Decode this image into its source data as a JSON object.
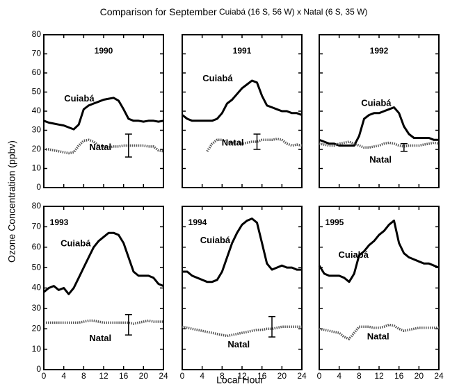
{
  "title": "Comparison for September",
  "subtitle": "Cuiabá (16 S, 56 W) x Natal (6 S, 35 W)",
  "xlabel": "Local Hour",
  "ylabel": "Ozone Concentration (ppbv)",
  "chart_data": [
    {
      "type": "line",
      "title": "1990",
      "xlim": [
        0,
        24
      ],
      "xticks": [
        0,
        4,
        8,
        12,
        16,
        20,
        24
      ],
      "ylim": [
        0,
        80
      ],
      "yticks": [
        0,
        10,
        20,
        30,
        40,
        50,
        60,
        70,
        80
      ],
      "x": [
        0,
        1,
        2,
        3,
        4,
        5,
        6,
        7,
        8,
        9,
        10,
        11,
        12,
        13,
        14,
        15,
        16,
        17,
        18,
        19,
        20,
        21,
        22,
        23,
        24
      ],
      "series": [
        {
          "name": "Cuiabá",
          "color": "#000000",
          "values": [
            35,
            34,
            33.5,
            33,
            32.5,
            31.5,
            30.5,
            33,
            41,
            43,
            44,
            45,
            46,
            46.5,
            47,
            45.5,
            41,
            36,
            35,
            35,
            34.5,
            35,
            35,
            34.5,
            35
          ]
        },
        {
          "name": "Natal",
          "color": "#555555",
          "values": [
            20,
            20,
            19.5,
            19,
            18.5,
            18,
            18.5,
            22,
            24.5,
            25,
            24,
            22,
            21.5,
            21,
            21.5,
            21.5,
            22,
            22,
            22,
            22,
            22,
            21.5,
            21.5,
            19.5,
            19
          ]
        }
      ],
      "error_bar": {
        "x": 17,
        "value": 22,
        "error": 6
      }
    },
    {
      "type": "line",
      "title": "1991",
      "xlim": [
        0,
        24
      ],
      "xticks": [
        0,
        4,
        8,
        12,
        16,
        20,
        24
      ],
      "ylim": [
        0,
        80
      ],
      "yticks": [
        0,
        10,
        20,
        30,
        40,
        50,
        60,
        70,
        80
      ],
      "x": [
        0,
        1,
        2,
        3,
        4,
        5,
        6,
        7,
        8,
        9,
        10,
        11,
        12,
        13,
        14,
        15,
        16,
        17,
        18,
        19,
        20,
        21,
        22,
        23,
        24
      ],
      "series": [
        {
          "name": "Cuiabá",
          "color": "#000000",
          "values": [
            38,
            36,
            35,
            35,
            35,
            35,
            35,
            36,
            39,
            44,
            46,
            49,
            52,
            54,
            56,
            55,
            48,
            43,
            42,
            41,
            40,
            40,
            39,
            39,
            38
          ]
        },
        {
          "name": "Natal",
          "color": "#555555",
          "values": [
            null,
            null,
            null,
            null,
            null,
            19,
            23,
            25,
            25,
            24,
            23.5,
            23,
            23,
            23.5,
            24,
            24,
            25,
            25,
            25,
            25.5,
            25,
            23,
            22,
            22.5,
            22
          ]
        }
      ],
      "error_bar": {
        "x": 15,
        "value": 24,
        "error": 4
      }
    },
    {
      "type": "line",
      "title": "1992",
      "xlim": [
        0,
        24
      ],
      "xticks": [
        0,
        4,
        8,
        12,
        16,
        20,
        24
      ],
      "ylim": [
        0,
        80
      ],
      "yticks": [
        0,
        10,
        20,
        30,
        40,
        50,
        60,
        70,
        80
      ],
      "x": [
        0,
        1,
        2,
        3,
        4,
        5,
        6,
        7,
        8,
        9,
        10,
        11,
        12,
        13,
        14,
        15,
        16,
        17,
        18,
        19,
        20,
        21,
        22,
        23,
        24
      ],
      "series": [
        {
          "name": "Cuiabá",
          "color": "#000000",
          "values": [
            25,
            24,
            23,
            23,
            22,
            22,
            22,
            22,
            27,
            36,
            38,
            39,
            39,
            40,
            41,
            42,
            39,
            32,
            28,
            26,
            26,
            26,
            26,
            25,
            25
          ]
        },
        {
          "name": "Natal",
          "color": "#555555",
          "values": [
            23,
            22.5,
            22,
            22,
            23,
            23.5,
            24,
            23,
            22,
            21,
            21,
            21.5,
            22,
            23,
            23.5,
            23,
            22,
            21.5,
            22,
            22,
            22,
            22.5,
            23,
            23.5,
            23
          ]
        }
      ],
      "error_bar": {
        "x": 17,
        "value": 21,
        "error": 2
      }
    },
    {
      "type": "line",
      "title": "1993",
      "xlim": [
        0,
        24
      ],
      "xticks": [
        0,
        4,
        8,
        12,
        16,
        20,
        24
      ],
      "ylim": [
        0,
        80
      ],
      "yticks": [
        0,
        10,
        20,
        30,
        40,
        50,
        60,
        70,
        80
      ],
      "x": [
        0,
        1,
        2,
        3,
        4,
        5,
        6,
        7,
        8,
        9,
        10,
        11,
        12,
        13,
        14,
        15,
        16,
        17,
        18,
        19,
        20,
        21,
        22,
        23,
        24
      ],
      "series": [
        {
          "name": "Cuiabá",
          "color": "#000000",
          "values": [
            38,
            40,
            41,
            39,
            40,
            37,
            40,
            45,
            50,
            55,
            60,
            63,
            65,
            67,
            67,
            66,
            62,
            55,
            48,
            46,
            46,
            46,
            45,
            42,
            41
          ]
        },
        {
          "name": "Natal",
          "color": "#555555",
          "values": [
            23,
            23,
            23,
            23,
            23,
            23,
            23,
            23,
            23.5,
            24,
            24,
            23.5,
            23,
            23,
            23,
            23,
            23,
            23,
            22.5,
            23,
            23.5,
            24,
            23.5,
            23.5,
            23.5
          ]
        }
      ],
      "error_bar": {
        "x": 17,
        "value": 22,
        "error": 5
      }
    },
    {
      "type": "line",
      "title": "1994",
      "xlim": [
        0,
        24
      ],
      "xticks": [
        0,
        4,
        8,
        12,
        16,
        20,
        24
      ],
      "ylim": [
        0,
        80
      ],
      "yticks": [
        0,
        10,
        20,
        30,
        40,
        50,
        60,
        70,
        80
      ],
      "x": [
        0,
        1,
        2,
        3,
        4,
        5,
        6,
        7,
        8,
        9,
        10,
        11,
        12,
        13,
        14,
        15,
        16,
        17,
        18,
        19,
        20,
        21,
        22,
        23,
        24
      ],
      "series": [
        {
          "name": "Cuiabá",
          "color": "#000000",
          "values": [
            48,
            48,
            46,
            45,
            44,
            43,
            43,
            44,
            48,
            55,
            62,
            67,
            71,
            73,
            74,
            72,
            62,
            52,
            49,
            50,
            51,
            50,
            50,
            49,
            49
          ]
        },
        {
          "name": "Natal",
          "color": "#555555",
          "values": [
            21,
            20.5,
            20,
            19.5,
            19,
            18.5,
            18,
            17.5,
            17,
            16.5,
            17,
            17.5,
            18,
            18.5,
            19,
            19.5,
            19.5,
            20,
            20,
            20.5,
            21,
            21,
            21,
            21,
            21
          ]
        }
      ],
      "error_bar": {
        "x": 18,
        "value": 21,
        "error": 5
      }
    },
    {
      "type": "line",
      "title": "1995",
      "xlim": [
        0,
        24
      ],
      "xticks": [
        0,
        4,
        8,
        12,
        16,
        20,
        24
      ],
      "ylim": [
        0,
        80
      ],
      "yticks": [
        0,
        10,
        20,
        30,
        40,
        50,
        60,
        70,
        80
      ],
      "x": [
        0,
        1,
        2,
        3,
        4,
        5,
        6,
        7,
        8,
        9,
        10,
        11,
        12,
        13,
        14,
        15,
        16,
        17,
        18,
        19,
        20,
        21,
        22,
        23,
        24
      ],
      "series": [
        {
          "name": "Cuiabá",
          "color": "#000000",
          "values": [
            51,
            47,
            46,
            46,
            46,
            45,
            43,
            47,
            56,
            58,
            61,
            63,
            66,
            68,
            71,
            73,
            62,
            57,
            55,
            54,
            53,
            52,
            52,
            51,
            50
          ]
        },
        {
          "name": "Natal",
          "color": "#555555",
          "values": [
            20,
            19.5,
            19,
            18.5,
            18,
            16,
            15,
            18,
            21,
            21,
            21,
            20.5,
            20.5,
            21,
            22,
            21.5,
            20,
            19,
            19.5,
            20,
            20.5,
            20.5,
            20.5,
            20.5,
            20.5
          ]
        }
      ]
    }
  ]
}
